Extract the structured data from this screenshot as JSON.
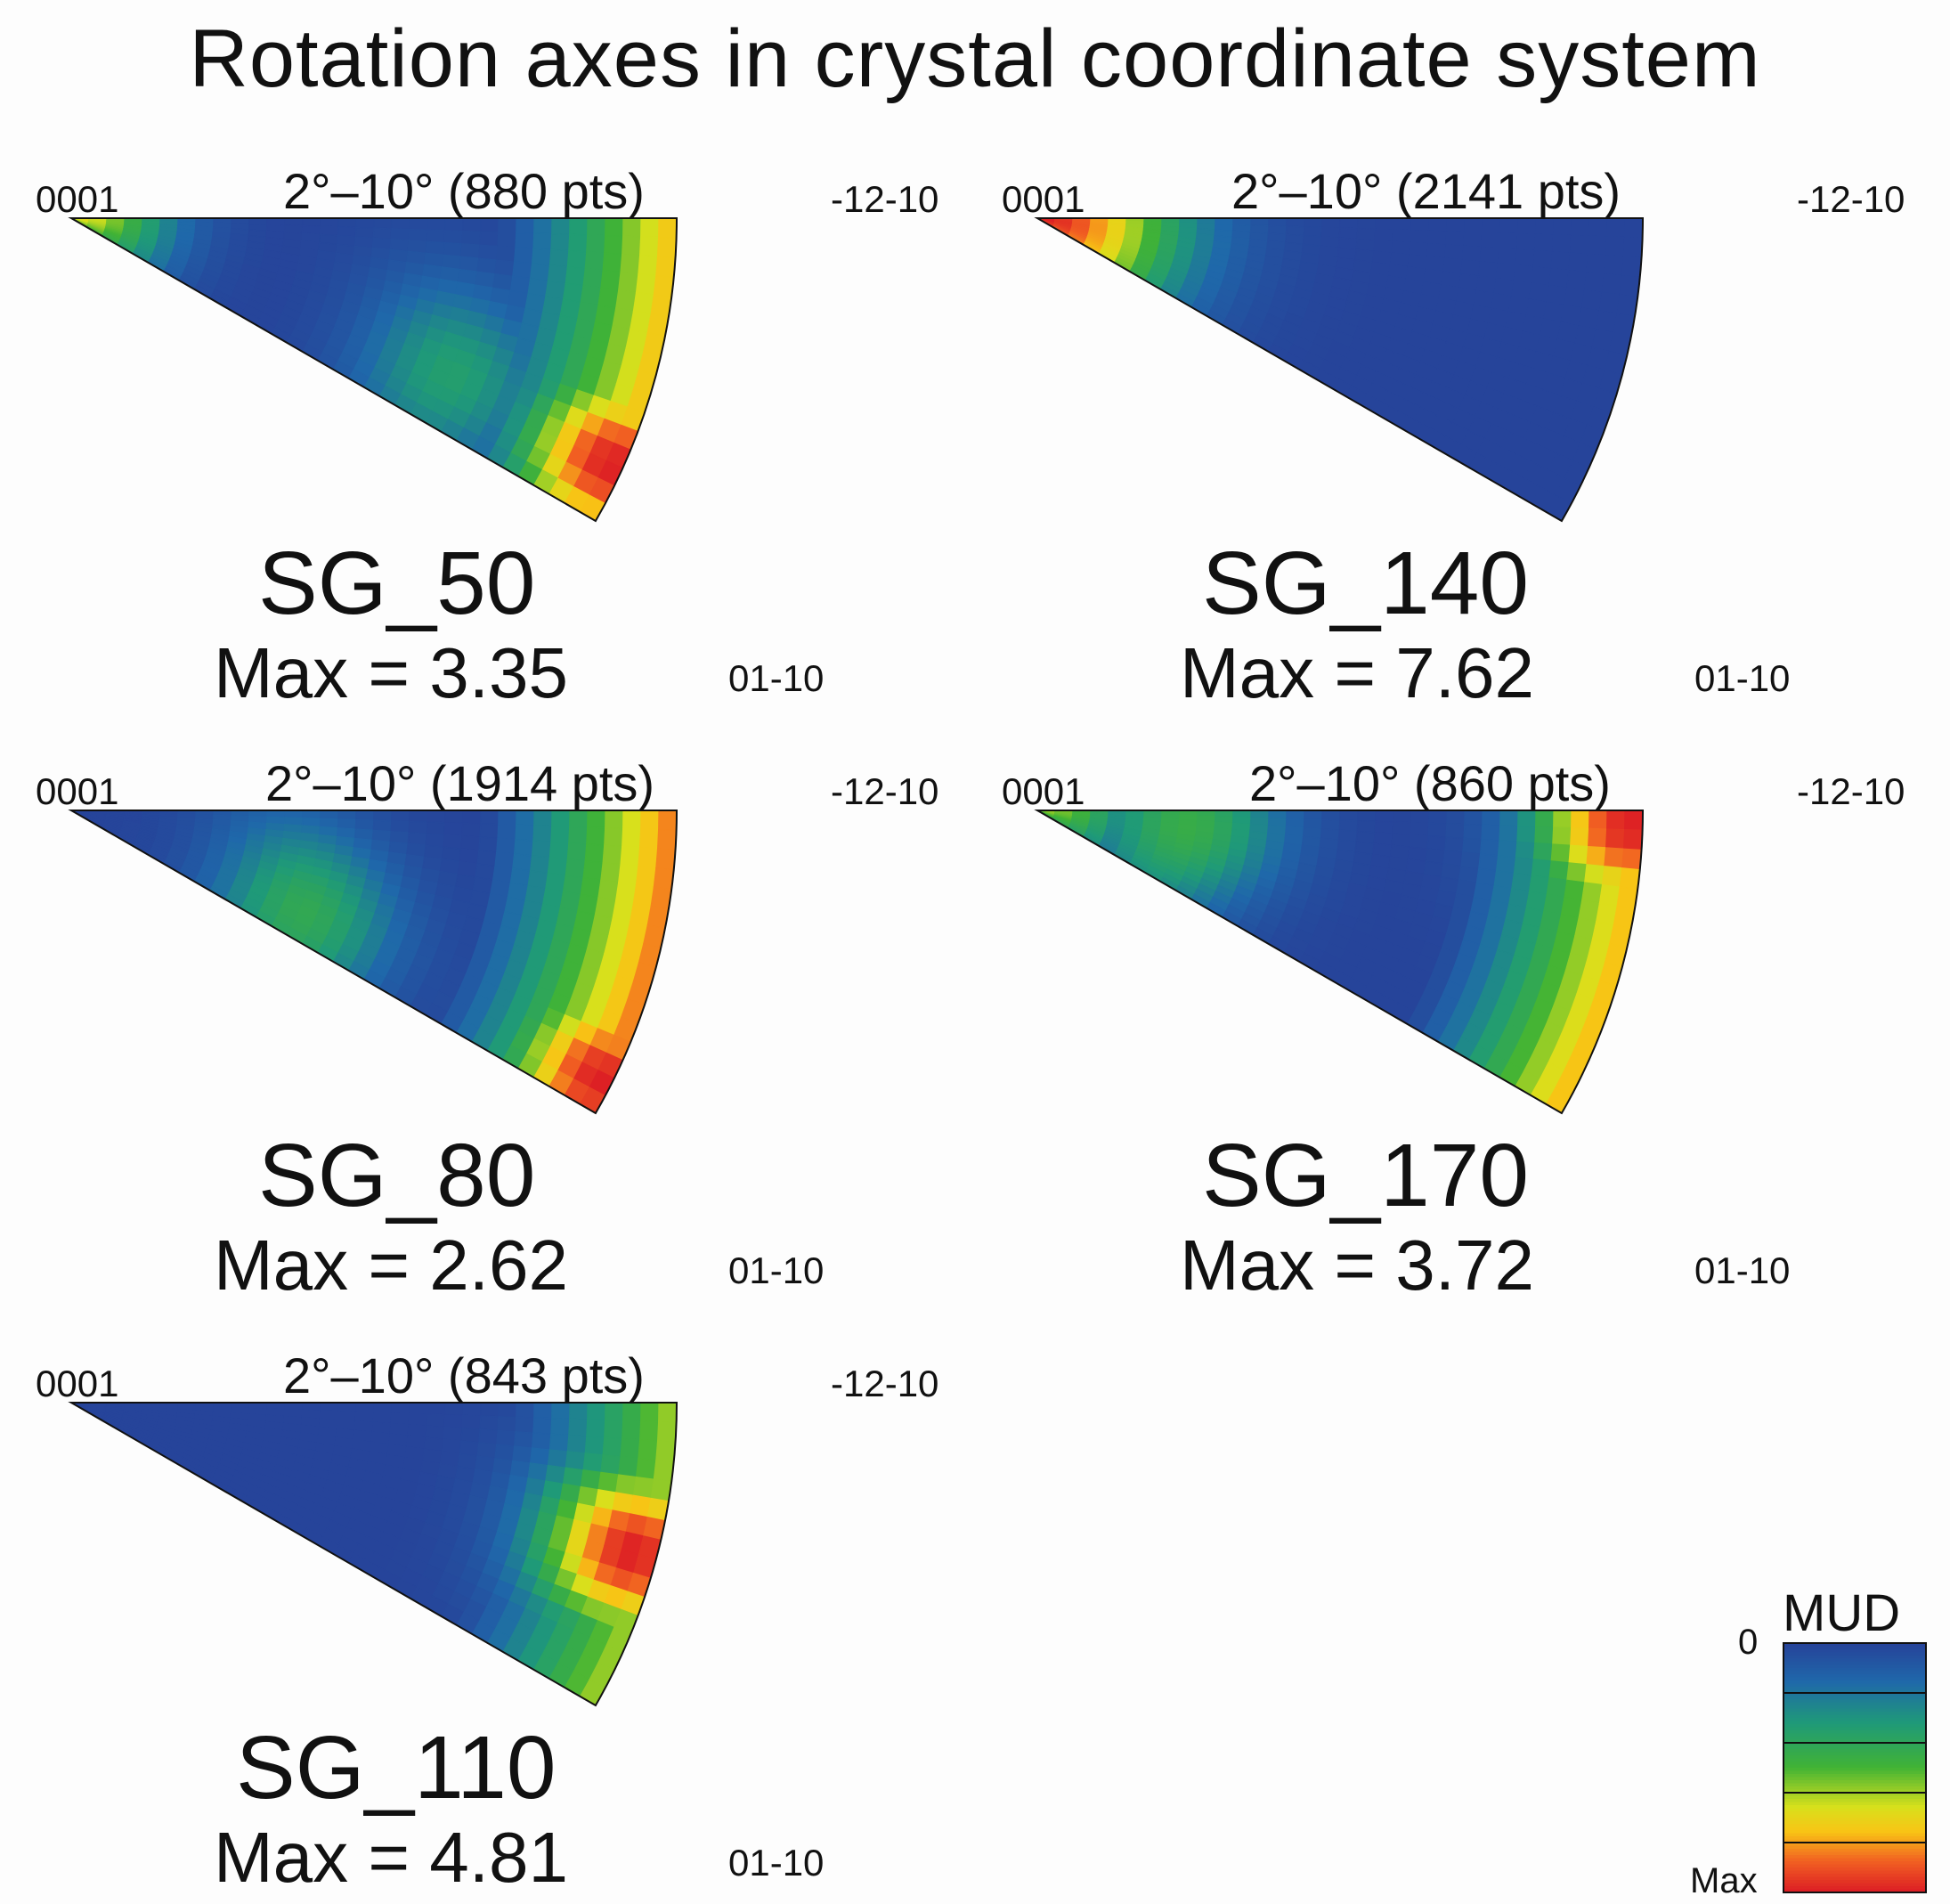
{
  "title": "Rotation axes in crystal coordinate system",
  "labels": {
    "corner_left": "0001",
    "corner_right": "-12-10",
    "corner_bottom": "01-10"
  },
  "legend": {
    "title": "MUD",
    "min_label": "0",
    "max_label": "Max",
    "colors": [
      "#26449a",
      "#1f6eaa",
      "#1f9a78",
      "#41b335",
      "#d8e01c",
      "#f8c415",
      "#f16022",
      "#dd1f24"
    ]
  },
  "chart_data": [
    {
      "type": "heatmap",
      "sample": "SG_50",
      "range_label": "2°–10° (880 pts)",
      "max_label": "Max = 3.35",
      "max_value": 3.35,
      "hotspots": [
        {
          "ang": 0.82,
          "rad": 0.98,
          "level": 1.0
        },
        {
          "ang": 0.05,
          "rad": 0.0,
          "level": 0.7
        },
        {
          "ang": 0.75,
          "rad": 0.68,
          "level": 0.35
        }
      ],
      "rim_level": 0.78,
      "rim_width": 0.3,
      "apex_width": 0.22
    },
    {
      "type": "heatmap",
      "sample": "SG_140",
      "range_label": "2°–10° (2141 pts)",
      "max_label": "Max = 7.62",
      "max_value": 7.62,
      "hotspots": [
        {
          "ang": 0.3,
          "rad": 0.0,
          "level": 1.0
        }
      ],
      "rim_level": 0.0,
      "rim_width": 0.3,
      "apex_width": 0.32
    },
    {
      "type": "heatmap",
      "sample": "SG_80",
      "range_label": "2°–10° (1914 pts)",
      "max_label": "Max = 2.62",
      "max_value": 2.62,
      "hotspots": [
        {
          "ang": 0.9,
          "rad": 0.98,
          "level": 1.0
        },
        {
          "ang": 0.8,
          "rad": 0.42,
          "level": 0.42
        }
      ],
      "rim_level": 0.88,
      "rim_width": 0.32,
      "apex_width": 0.0
    },
    {
      "type": "heatmap",
      "sample": "SG_170",
      "range_label": "2°–10° (860 pts)",
      "max_label": "Max = 3.72",
      "max_value": 3.72,
      "hotspots": [
        {
          "ang": 0.05,
          "rad": 0.98,
          "level": 1.0
        },
        {
          "ang": 0.2,
          "rad": 0.25,
          "level": 0.45
        },
        {
          "ang": 0.0,
          "rad": 0.0,
          "level": 0.6
        }
      ],
      "rim_level": 0.8,
      "rim_width": 0.3,
      "apex_width": 0.22
    },
    {
      "type": "heatmap",
      "sample": "SG_110",
      "range_label": "2°–10° (843 pts)",
      "max_label": "Max = 4.81",
      "max_value": 4.81,
      "hotspots": [
        {
          "ang": 0.5,
          "rad": 0.96,
          "level": 1.0
        }
      ],
      "rim_level": 0.62,
      "rim_width": 0.28,
      "apex_width": 0.0
    }
  ]
}
